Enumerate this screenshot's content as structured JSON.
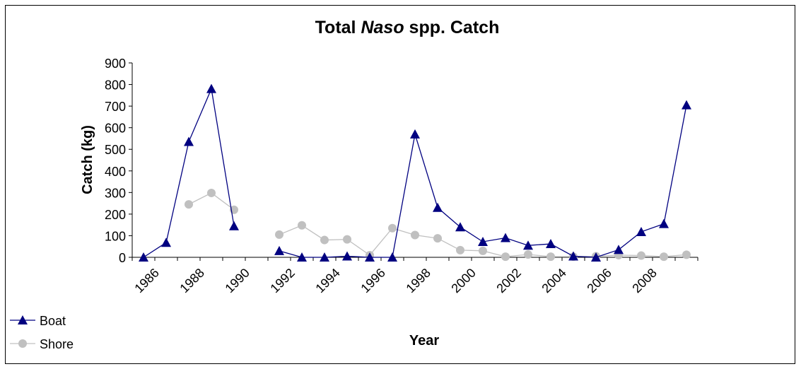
{
  "chart_data": {
    "type": "line",
    "title": [
      {
        "text": "Total "
      },
      {
        "text": "Naso",
        "italic": true
      },
      {
        "text": " spp. Catch"
      }
    ],
    "x_label": "Year",
    "y_label": "Catch (kg)",
    "categories": [
      1986,
      null,
      1988,
      null,
      1990,
      null,
      1992,
      null,
      1994,
      null,
      1996,
      null,
      1998,
      null,
      2000,
      null,
      2002,
      null,
      2004,
      null,
      2006,
      null,
      2008,
      null,
      null
    ],
    "series": [
      {
        "name": "Boat",
        "color": "#000080",
        "marker": "triangle",
        "values": [
          0,
          68,
          535,
          780,
          145,
          null,
          30,
          0,
          0,
          5,
          0,
          0,
          570,
          230,
          140,
          72,
          90,
          55,
          62,
          5,
          0,
          35,
          118,
          155,
          705
        ]
      },
      {
        "name": "Shore",
        "color": "#c0c0c0",
        "marker": "circle",
        "values": [
          null,
          null,
          245,
          298,
          220,
          null,
          105,
          148,
          80,
          83,
          10,
          135,
          103,
          88,
          33,
          30,
          3,
          13,
          3,
          3,
          5,
          10,
          8,
          3,
          12
        ]
      }
    ],
    "ylim": [
      0,
      900
    ],
    "yticks": [
      0,
      100,
      200,
      300,
      400,
      500,
      600,
      700,
      800,
      900
    ],
    "legend": "bottom-left"
  }
}
